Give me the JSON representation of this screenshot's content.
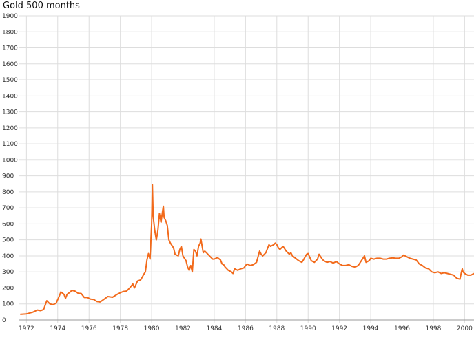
{
  "chart_data": {
    "type": "line",
    "title": "Gold 500 months",
    "xlabel": "",
    "ylabel": "",
    "ylim": [
      0,
      1900
    ],
    "xlim": [
      1971.5,
      2000.6
    ],
    "y_ticks": [
      0,
      100,
      200,
      300,
      400,
      500,
      600,
      700,
      800,
      900,
      1000,
      1100,
      1200,
      1300,
      1400,
      1500,
      1600,
      1700,
      1800,
      1900
    ],
    "x_ticks": [
      "1972",
      "1974",
      "1976",
      "1978",
      "1980",
      "1982",
      "1984",
      "1986",
      "1988",
      "1990",
      "1992",
      "1994",
      "1996",
      "1998",
      "2000"
    ],
    "grid": true,
    "colors": {
      "line": "#f26a1b",
      "grid": "#dddddd",
      "grid_major": "#c8c8c8"
    },
    "series": [
      {
        "points": [
          [
            1971.6,
            35
          ],
          [
            1972.0,
            38
          ],
          [
            1972.4,
            48
          ],
          [
            1972.7,
            62
          ],
          [
            1972.9,
            58
          ],
          [
            1973.1,
            65
          ],
          [
            1973.3,
            120
          ],
          [
            1973.5,
            100
          ],
          [
            1973.7,
            95
          ],
          [
            1973.9,
            105
          ],
          [
            1974.1,
            150
          ],
          [
            1974.2,
            175
          ],
          [
            1974.4,
            160
          ],
          [
            1974.5,
            135
          ],
          [
            1974.6,
            160
          ],
          [
            1974.8,
            175
          ],
          [
            1974.9,
            185
          ],
          [
            1975.1,
            180
          ],
          [
            1975.3,
            167
          ],
          [
            1975.5,
            165
          ],
          [
            1975.7,
            140
          ],
          [
            1975.9,
            140
          ],
          [
            1976.1,
            130
          ],
          [
            1976.3,
            128
          ],
          [
            1976.5,
            115
          ],
          [
            1976.7,
            112
          ],
          [
            1976.8,
            118
          ],
          [
            1977.0,
            132
          ],
          [
            1977.2,
            146
          ],
          [
            1977.5,
            142
          ],
          [
            1977.8,
            160
          ],
          [
            1978.0,
            170
          ],
          [
            1978.2,
            178
          ],
          [
            1978.4,
            180
          ],
          [
            1978.6,
            200
          ],
          [
            1978.8,
            225
          ],
          [
            1978.9,
            200
          ],
          [
            1979.1,
            243
          ],
          [
            1979.3,
            250
          ],
          [
            1979.5,
            285
          ],
          [
            1979.6,
            300
          ],
          [
            1979.7,
            375
          ],
          [
            1979.8,
            415
          ],
          [
            1979.9,
            380
          ],
          [
            1980.0,
            600
          ],
          [
            1980.05,
            845
          ],
          [
            1980.1,
            650
          ],
          [
            1980.2,
            560
          ],
          [
            1980.3,
            500
          ],
          [
            1980.4,
            560
          ],
          [
            1980.5,
            665
          ],
          [
            1980.6,
            610
          ],
          [
            1980.7,
            680
          ],
          [
            1980.75,
            710
          ],
          [
            1980.8,
            640
          ],
          [
            1980.9,
            620
          ],
          [
            1981.0,
            590
          ],
          [
            1981.1,
            500
          ],
          [
            1981.2,
            480
          ],
          [
            1981.4,
            450
          ],
          [
            1981.5,
            410
          ],
          [
            1981.7,
            400
          ],
          [
            1981.8,
            440
          ],
          [
            1981.9,
            460
          ],
          [
            1982.0,
            400
          ],
          [
            1982.2,
            370
          ],
          [
            1982.3,
            330
          ],
          [
            1982.4,
            310
          ],
          [
            1982.5,
            340
          ],
          [
            1982.6,
            300
          ],
          [
            1982.7,
            440
          ],
          [
            1982.8,
            430
          ],
          [
            1982.9,
            400
          ],
          [
            1983.0,
            460
          ],
          [
            1983.1,
            480
          ],
          [
            1983.15,
            505
          ],
          [
            1983.3,
            420
          ],
          [
            1983.4,
            430
          ],
          [
            1983.5,
            420
          ],
          [
            1983.7,
            400
          ],
          [
            1983.8,
            390
          ],
          [
            1983.9,
            380
          ],
          [
            1984.0,
            380
          ],
          [
            1984.2,
            390
          ],
          [
            1984.4,
            375
          ],
          [
            1984.5,
            350
          ],
          [
            1984.6,
            345
          ],
          [
            1984.7,
            330
          ],
          [
            1984.9,
            310
          ],
          [
            1985.1,
            300
          ],
          [
            1985.2,
            290
          ],
          [
            1985.3,
            320
          ],
          [
            1985.5,
            310
          ],
          [
            1985.7,
            320
          ],
          [
            1985.9,
            325
          ],
          [
            1986.0,
            340
          ],
          [
            1986.1,
            350
          ],
          [
            1986.3,
            340
          ],
          [
            1986.5,
            345
          ],
          [
            1986.7,
            360
          ],
          [
            1986.9,
            430
          ],
          [
            1987.0,
            410
          ],
          [
            1987.1,
            400
          ],
          [
            1987.3,
            420
          ],
          [
            1987.5,
            470
          ],
          [
            1987.6,
            460
          ],
          [
            1987.8,
            470
          ],
          [
            1987.9,
            480
          ],
          [
            1988.0,
            470
          ],
          [
            1988.1,
            450
          ],
          [
            1988.2,
            440
          ],
          [
            1988.4,
            460
          ],
          [
            1988.6,
            430
          ],
          [
            1988.8,
            410
          ],
          [
            1988.9,
            420
          ],
          [
            1989.0,
            400
          ],
          [
            1989.2,
            385
          ],
          [
            1989.4,
            370
          ],
          [
            1989.6,
            360
          ],
          [
            1989.7,
            375
          ],
          [
            1989.9,
            410
          ],
          [
            1990.0,
            415
          ],
          [
            1990.2,
            370
          ],
          [
            1990.4,
            360
          ],
          [
            1990.6,
            380
          ],
          [
            1990.7,
            410
          ],
          [
            1990.9,
            380
          ],
          [
            1991.0,
            370
          ],
          [
            1991.2,
            360
          ],
          [
            1991.4,
            365
          ],
          [
            1991.6,
            355
          ],
          [
            1991.8,
            365
          ],
          [
            1992.0,
            350
          ],
          [
            1992.2,
            340
          ],
          [
            1992.4,
            340
          ],
          [
            1992.6,
            345
          ],
          [
            1992.8,
            335
          ],
          [
            1993.0,
            330
          ],
          [
            1993.2,
            340
          ],
          [
            1993.4,
            370
          ],
          [
            1993.6,
            400
          ],
          [
            1993.7,
            360
          ],
          [
            1993.9,
            370
          ],
          [
            1994.0,
            385
          ],
          [
            1994.2,
            380
          ],
          [
            1994.4,
            385
          ],
          [
            1994.6,
            385
          ],
          [
            1994.8,
            380
          ],
          [
            1995.0,
            380
          ],
          [
            1995.2,
            385
          ],
          [
            1995.4,
            388
          ],
          [
            1995.6,
            385
          ],
          [
            1995.8,
            385
          ],
          [
            1996.0,
            395
          ],
          [
            1996.1,
            405
          ],
          [
            1996.3,
            395
          ],
          [
            1996.5,
            385
          ],
          [
            1996.7,
            380
          ],
          [
            1996.9,
            375
          ],
          [
            1997.1,
            350
          ],
          [
            1997.3,
            340
          ],
          [
            1997.5,
            325
          ],
          [
            1997.7,
            320
          ],
          [
            1997.9,
            300
          ],
          [
            1998.1,
            295
          ],
          [
            1998.3,
            300
          ],
          [
            1998.5,
            290
          ],
          [
            1998.7,
            295
          ],
          [
            1998.9,
            290
          ],
          [
            1999.1,
            285
          ],
          [
            1999.3,
            280
          ],
          [
            1999.5,
            260
          ],
          [
            1999.7,
            255
          ],
          [
            1999.8,
            300
          ],
          [
            1999.85,
            320
          ],
          [
            1999.9,
            300
          ],
          [
            2000.0,
            290
          ],
          [
            2000.2,
            280
          ],
          [
            2000.4,
            280
          ],
          [
            2000.6,
            290
          ]
        ]
      }
    ]
  }
}
